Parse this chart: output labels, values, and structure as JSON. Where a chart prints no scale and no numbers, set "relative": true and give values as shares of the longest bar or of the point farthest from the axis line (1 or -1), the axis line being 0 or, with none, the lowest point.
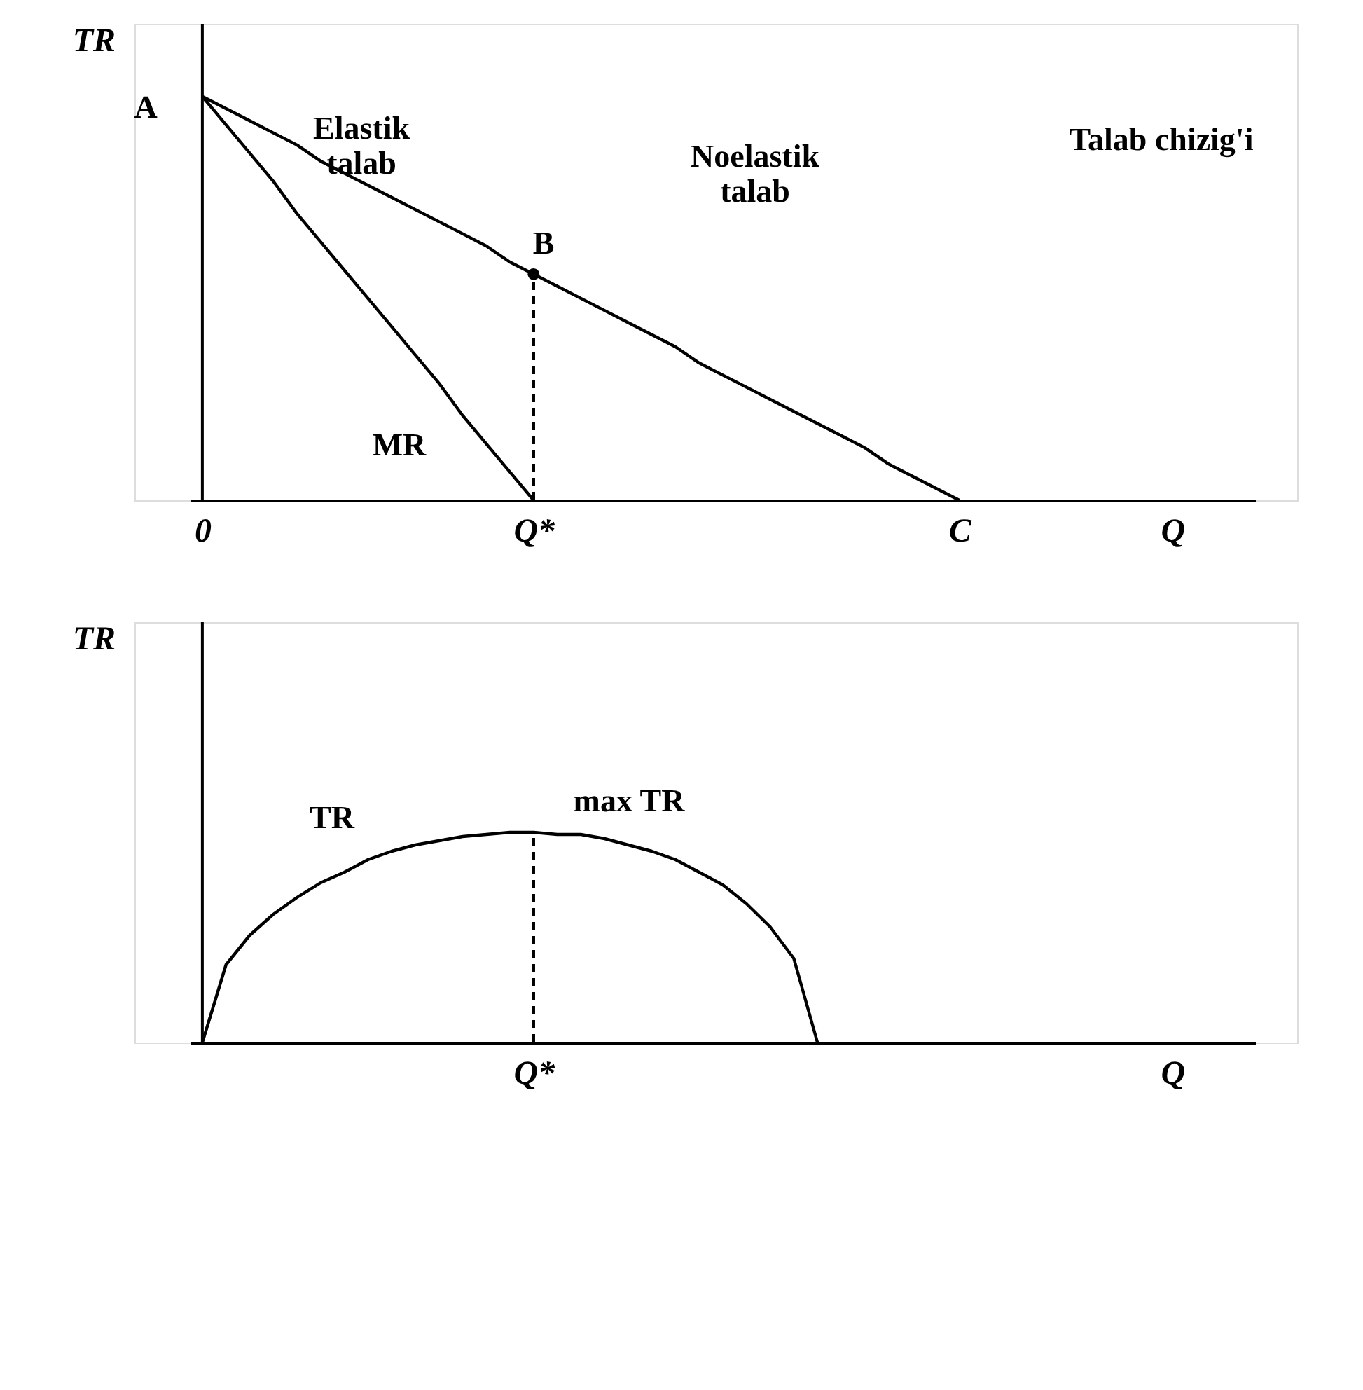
{
  "chart_data": [
    {
      "type": "line",
      "relative": true,
      "ylabel": "TR",
      "categories": [
        "0",
        null,
        null,
        null,
        null,
        null,
        null,
        null,
        null,
        null,
        null,
        null,
        null,
        null,
        "Q*",
        null,
        null,
        null,
        null,
        null,
        null,
        null,
        null,
        null,
        null,
        null,
        null,
        null,
        null,
        null,
        null,
        null,
        "C",
        null,
        null,
        null,
        null,
        null,
        null,
        null,
        null,
        "Q",
        null,
        null,
        null
      ],
      "series": [
        {
          "color": "#000000",
          "values": [
            1,
            0.97,
            0.94,
            0.91,
            0.88,
            0.84,
            0.81,
            0.78,
            0.75,
            0.72,
            0.69,
            0.66,
            0.63,
            0.59,
            0.56,
            0.53,
            0.5,
            0.47,
            0.44,
            0.41,
            0.38,
            0.34,
            0.31,
            0.28,
            0.25,
            0.22,
            0.19,
            0.16,
            0.13,
            0.09,
            0.06,
            0.03,
            0,
            null,
            null,
            null,
            null,
            null,
            null,
            null,
            null,
            null,
            null,
            null,
            null
          ]
        },
        {
          "color": "#000000",
          "values": [
            1,
            0.93,
            0.86,
            0.79,
            0.71,
            0.64,
            0.57,
            0.5,
            0.43,
            0.36,
            0.29,
            0.21,
            0.14,
            0.07,
            0,
            null,
            null,
            null,
            null,
            null,
            null,
            null,
            null,
            null,
            null,
            null,
            null,
            null,
            null,
            null,
            null,
            null,
            null,
            null,
            null,
            null,
            null,
            null,
            null,
            null,
            null,
            null,
            null,
            null,
            null
          ]
        },
        {
          "type": "line",
          "line_style": "dashed",
          "color": "#000000",
          "x": [
            "Q*",
            "Q*"
          ],
          "values": [
            0,
            0.56
          ]
        },
        {
          "type": "scatter",
          "marker": "circle",
          "color": "#000000",
          "x": [
            "Q*"
          ],
          "values": [
            0.56
          ]
        }
      ],
      "annotations": [
        "A",
        "Elastik\ntalab",
        "B",
        "Noelastik\ntalab",
        "Talab chizig'i",
        "MR"
      ]
    },
    {
      "type": "line",
      "relative": true,
      "ylabel": "TR",
      "categories": [
        null,
        null,
        null,
        null,
        null,
        null,
        null,
        null,
        null,
        null,
        null,
        null,
        null,
        null,
        "Q*",
        null,
        null,
        null,
        null,
        null,
        null,
        null,
        null,
        null,
        null,
        null,
        null,
        null,
        null,
        null,
        null,
        null,
        null,
        null,
        null,
        null,
        null,
        null,
        null,
        null,
        null,
        "Q",
        null,
        null,
        null
      ],
      "series": [
        {
          "color": "#000000",
          "values": [
            0,
            0.37,
            0.51,
            0.61,
            0.69,
            0.76,
            0.81,
            0.87,
            0.91,
            0.94,
            0.96,
            0.98,
            0.99,
            1,
            1,
            0.99,
            0.99,
            0.97,
            0.94,
            0.91,
            0.87,
            0.81,
            0.75,
            0.66,
            0.55,
            0.4,
            0,
            null,
            null,
            null,
            null,
            null,
            null,
            null,
            null,
            null,
            null,
            null,
            null,
            null,
            null,
            null,
            null,
            null,
            null
          ]
        },
        {
          "type": "line",
          "line_style": "dashed",
          "color": "#000000",
          "x": [
            "Q*",
            "Q*"
          ],
          "values": [
            0,
            1
          ]
        }
      ],
      "annotations": [
        "TR",
        "max TR"
      ]
    }
  ]
}
